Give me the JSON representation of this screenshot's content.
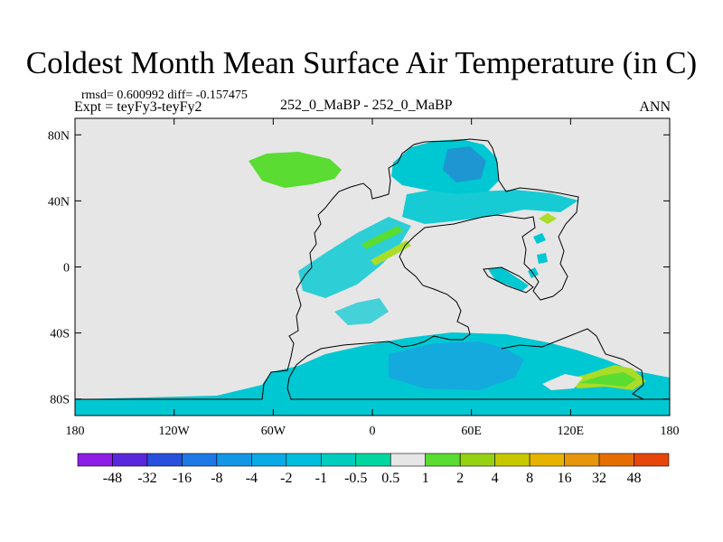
{
  "chart_data": {
    "type": "heatmap",
    "title": "Coldest Month Mean Surface Air Temperature (in C)",
    "stats": "rmsd= 0.600992 diff= -0.157475",
    "experiment": "Expt = teyFy3-teyFy2",
    "center_label": "252_0_MaBP - 252_0_MaBP",
    "season": "ANN",
    "x_axis": {
      "range": [
        -180,
        180
      ],
      "ticks": [
        -180,
        -120,
        -60,
        0,
        60,
        120,
        180
      ],
      "tick_labels": [
        "180",
        "120W",
        "60W",
        "0",
        "60E",
        "120E",
        "180"
      ]
    },
    "y_axis": {
      "range": [
        -90,
        90
      ],
      "ticks": [
        80,
        40,
        0,
        -40,
        -80
      ],
      "tick_labels": [
        "80N",
        "40N",
        "0",
        "40S",
        "80S"
      ]
    },
    "colorbar": {
      "levels": [
        "-48",
        "-32",
        "-16",
        "-8",
        "-4",
        "-2",
        "-1",
        "-0.5",
        "0.5",
        "1",
        "2",
        "4",
        "8",
        "16",
        "32",
        "48"
      ],
      "colors": [
        "#8c1ee6",
        "#5a28dc",
        "#2850dc",
        "#1e78e6",
        "#1496e6",
        "#0aaae6",
        "#00bedc",
        "#00cdbe",
        "#00d7a0",
        "#e6e6e6",
        "#5adc32",
        "#96d214",
        "#c8c800",
        "#e6b400",
        "#e6960a",
        "#e66e00",
        "#e6460a"
      ]
    },
    "colors": {
      "background": "#e6e6e6",
      "anomaly_cool": "#00c8d2",
      "anomaly_cool_mid": "#14aade",
      "anomaly_cool_strong": "#1e96d2",
      "anomaly_green": "#5adc32",
      "anomaly_yellow": "#aadc28",
      "coast": "#000000"
    }
  }
}
